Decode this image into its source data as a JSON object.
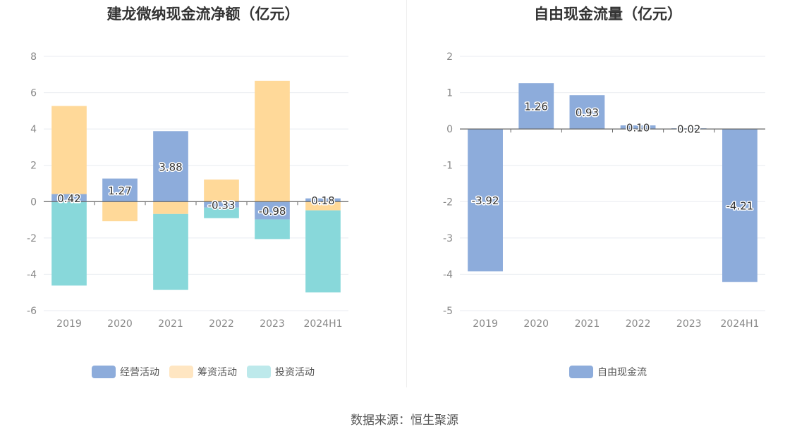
{
  "source": "数据来源：恒生聚源",
  "colors": {
    "operating": "#8dacdb",
    "financing": "#ffd999",
    "investing": "#88d8da",
    "investing_legend": "#bde9eb",
    "financing_legend": "#ffe6c2",
    "free_cash_flow": "#8dacdb",
    "grid": "#e8ebf0",
    "axis_label": "#888888",
    "zero_line": "#666666"
  },
  "chart_data": [
    {
      "id": "net-cash",
      "type": "bar",
      "stacked": true,
      "title": "建龙微纳现金流净额（亿元）",
      "categories": [
        "2019",
        "2020",
        "2021",
        "2022",
        "2023",
        "2024H1"
      ],
      "ylim": [
        -6,
        8
      ],
      "yticks": [
        8,
        6,
        4,
        2,
        0,
        -2,
        -4,
        -6
      ],
      "grid": true,
      "legend_position": "bottom",
      "series": [
        {
          "name": "经营活动",
          "key": "operating",
          "values": [
            0.42,
            1.27,
            3.88,
            -0.33,
            -0.98,
            0.18
          ]
        },
        {
          "name": "筹资活动",
          "key": "financing",
          "values": [
            4.85,
            -1.08,
            -0.68,
            1.22,
            6.65,
            -0.48
          ]
        },
        {
          "name": "投资活动",
          "key": "investing",
          "values": [
            -4.62,
            0.0,
            -4.18,
            -0.58,
            -1.08,
            -4.52
          ]
        }
      ],
      "data_labels": [
        "0.42",
        "1.27",
        "3.88",
        "-0.33",
        "-0.98",
        "0.18"
      ]
    },
    {
      "id": "free-cash-flow",
      "type": "bar",
      "title": "自由现金流量（亿元）",
      "categories": [
        "2019",
        "2020",
        "2021",
        "2022",
        "2023",
        "2024H1"
      ],
      "ylim": [
        -5,
        2
      ],
      "yticks": [
        2,
        1,
        0,
        -1,
        -2,
        -3,
        -4,
        -5
      ],
      "grid": true,
      "legend_position": "bottom",
      "series": [
        {
          "name": "自由现金流",
          "key": "free_cash_flow",
          "values": [
            -3.92,
            1.26,
            0.93,
            0.1,
            0.02,
            -4.21
          ]
        }
      ],
      "data_labels": [
        "-3.92",
        "1.26",
        "0.93",
        "0.10",
        "0.02",
        "-4.21"
      ]
    }
  ]
}
